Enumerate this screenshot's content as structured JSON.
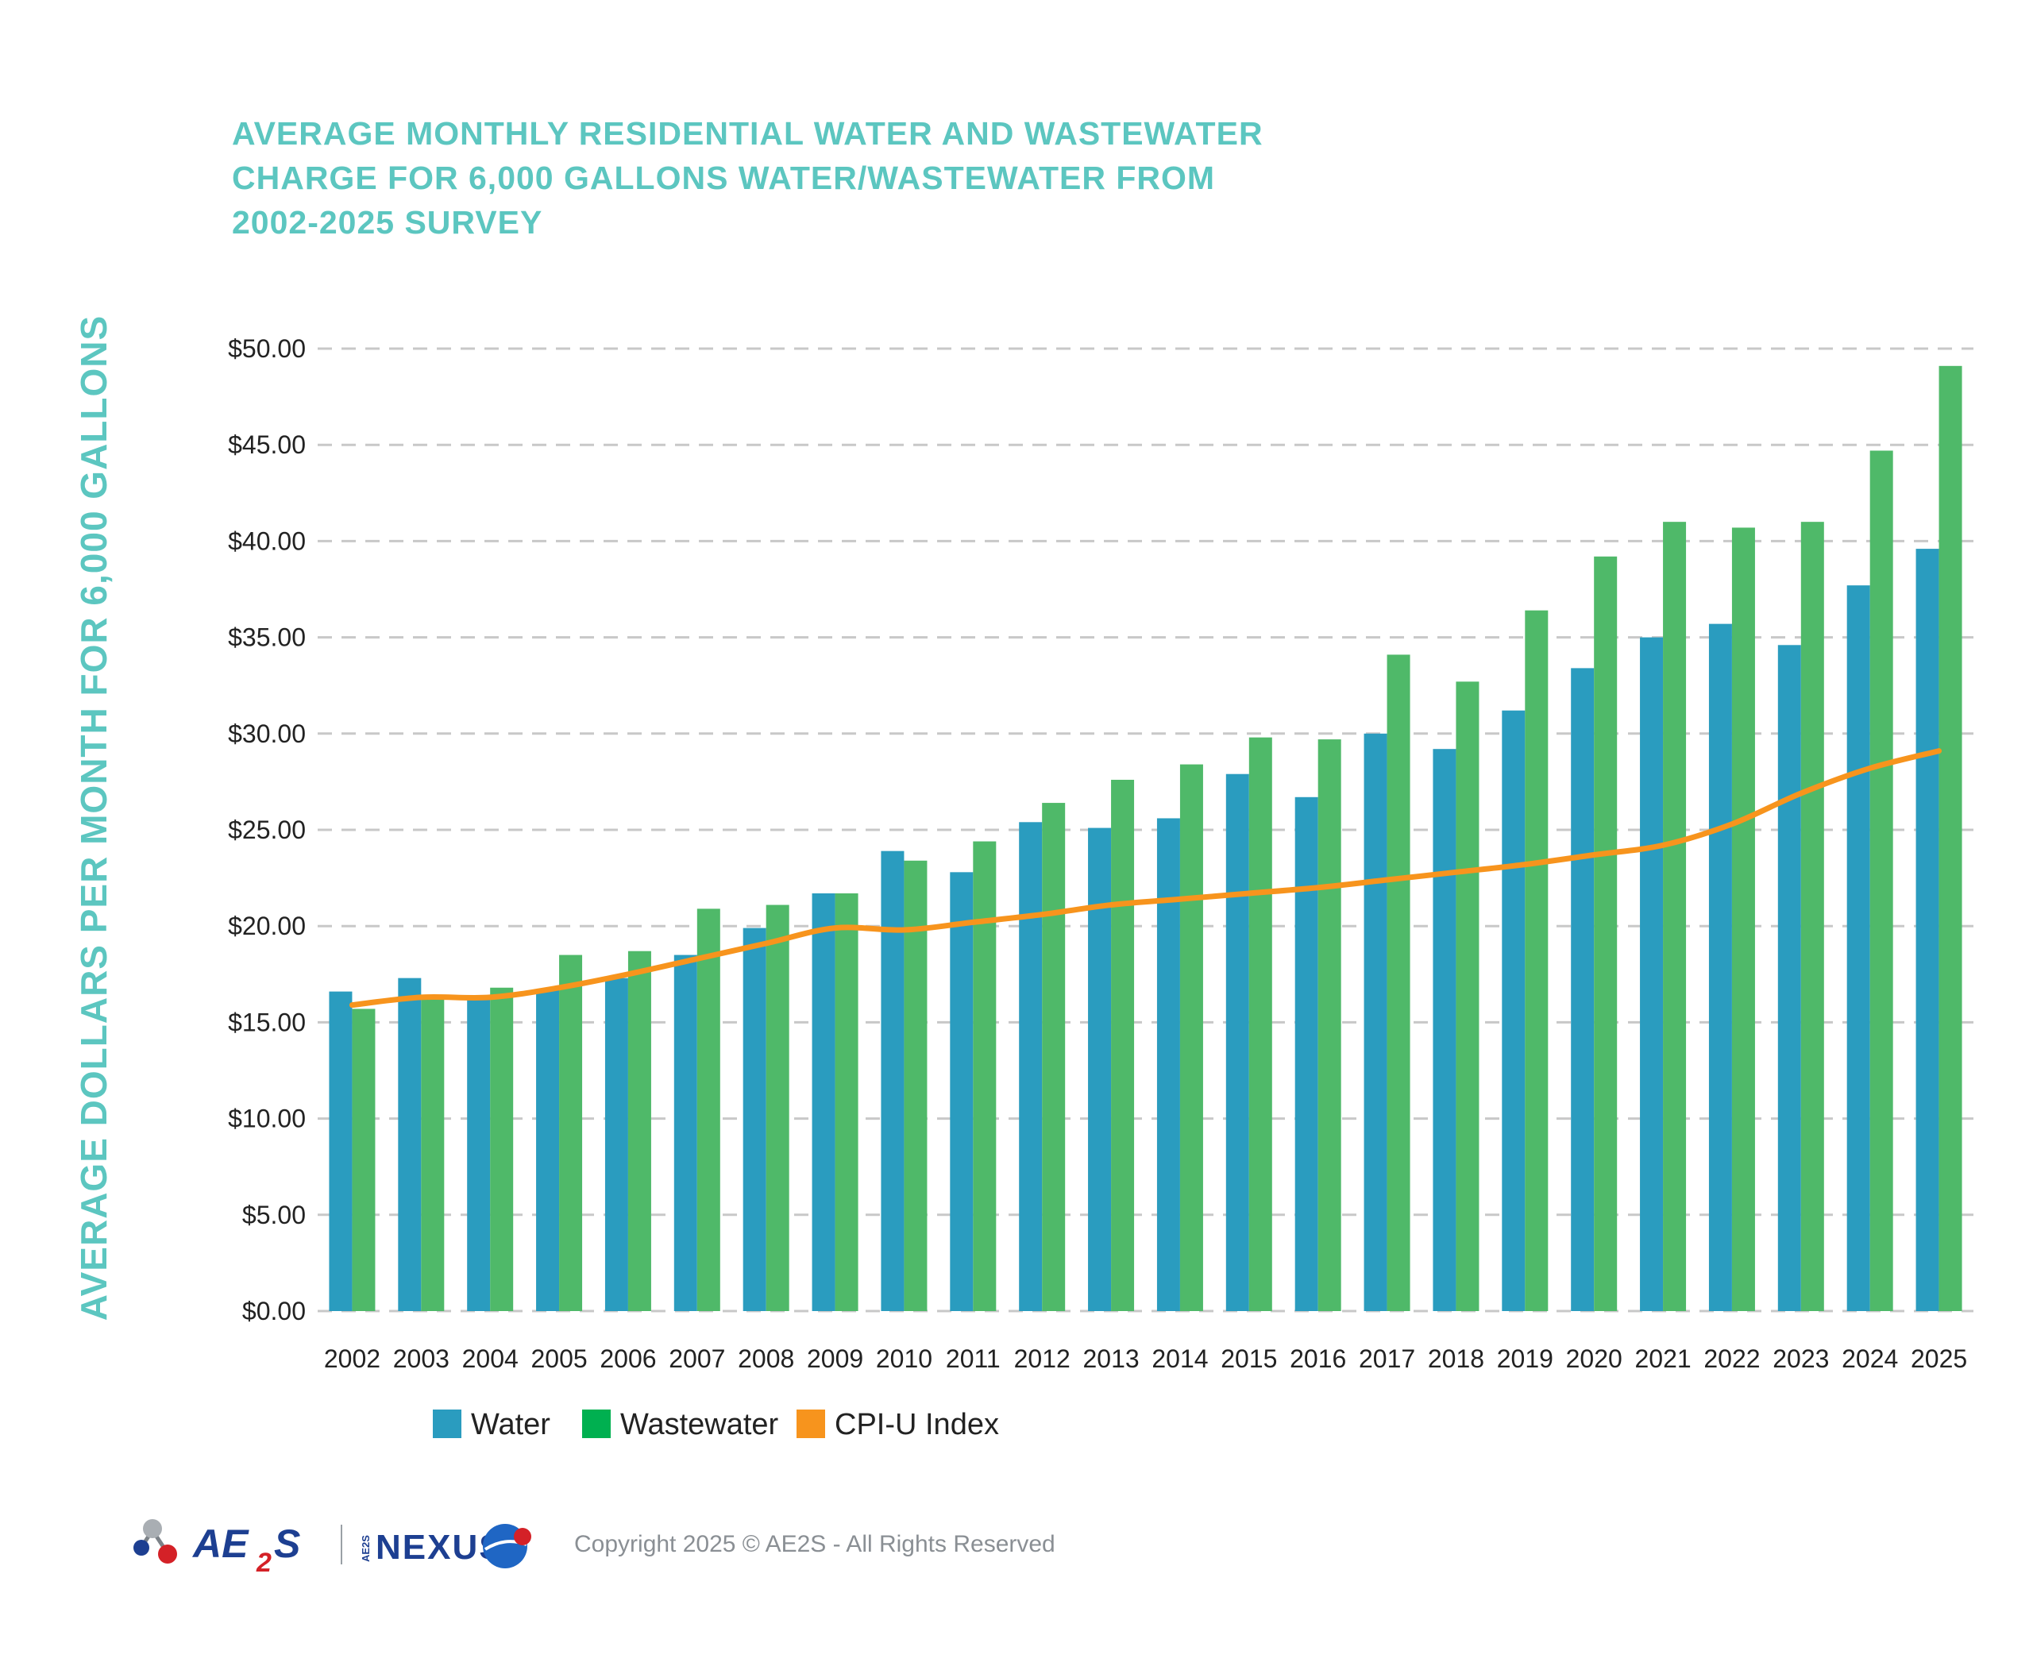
{
  "chart_data": {
    "type": "bar",
    "title_lines": [
      "AVERAGE MONTHLY RESIDENTIAL WATER AND WASTEWATER",
      "CHARGE FOR 6,000 GALLONS WATER/WASTEWATER FROM",
      "2002-2025 SURVEY"
    ],
    "ylabel": "AVERAGE DOLLARS PER MONTH FOR 6,000 GALLONS",
    "xlabel": "",
    "ylim": [
      0,
      50
    ],
    "yticks": [
      "$0.00",
      "$5.00",
      "$10.00",
      "$15.00",
      "$20.00",
      "$25.00",
      "$30.00",
      "$35.00",
      "$40.00",
      "$45.00",
      "$50.00"
    ],
    "grid": "horizontal dashed",
    "legend_placement": "bottom-left",
    "categories": [
      "2002",
      "2003",
      "2004",
      "2005",
      "2006",
      "2007",
      "2008",
      "2009",
      "2010",
      "2011",
      "2012",
      "2013",
      "2014",
      "2015",
      "2016",
      "2017",
      "2018",
      "2019",
      "2020",
      "2021",
      "2022",
      "2023",
      "2024",
      "2025"
    ],
    "series": [
      {
        "name": "Water",
        "type": "bar",
        "color": "#2a9cbf",
        "values": [
          16.6,
          17.3,
          16.3,
          16.7,
          17.3,
          18.5,
          19.9,
          21.7,
          23.9,
          22.8,
          25.4,
          25.1,
          25.6,
          27.9,
          26.7,
          30.0,
          29.2,
          31.2,
          33.4,
          35.0,
          35.7,
          34.6,
          37.7,
          39.6
        ]
      },
      {
        "name": "Wastewater",
        "type": "bar",
        "color": "#4fb969",
        "values": [
          15.7,
          16.2,
          16.8,
          18.5,
          18.7,
          20.9,
          21.1,
          21.7,
          23.4,
          24.4,
          26.4,
          27.6,
          28.4,
          29.8,
          29.7,
          34.1,
          32.7,
          36.4,
          39.2,
          41.0,
          40.7,
          41.0,
          44.7,
          49.1
        ]
      },
      {
        "name": "CPI-U Index",
        "type": "line",
        "color": "#f7941d",
        "values": [
          15.9,
          16.3,
          16.3,
          16.8,
          17.5,
          18.3,
          19.1,
          19.9,
          19.8,
          20.2,
          20.6,
          21.1,
          21.4,
          21.7,
          22.0,
          22.4,
          22.8,
          23.2,
          23.7,
          24.2,
          25.3,
          26.9,
          28.2,
          29.1
        ]
      }
    ],
    "legend_swatch_colors": [
      "#2a9cbf",
      "#00b050",
      "#f7941d"
    ]
  },
  "footer": {
    "logo_text_ae": "AE",
    "logo_text_2": "2",
    "logo_text_s": "S",
    "nexus_small_text": "AE2S",
    "nexus_text": "NEXUS",
    "copyright": "Copyright 2025 © AE2S - All Rights Reserved",
    "brand_colors": {
      "navy": "#1d3f91",
      "red": "#d42127",
      "gray": "#9aa0a6"
    }
  }
}
